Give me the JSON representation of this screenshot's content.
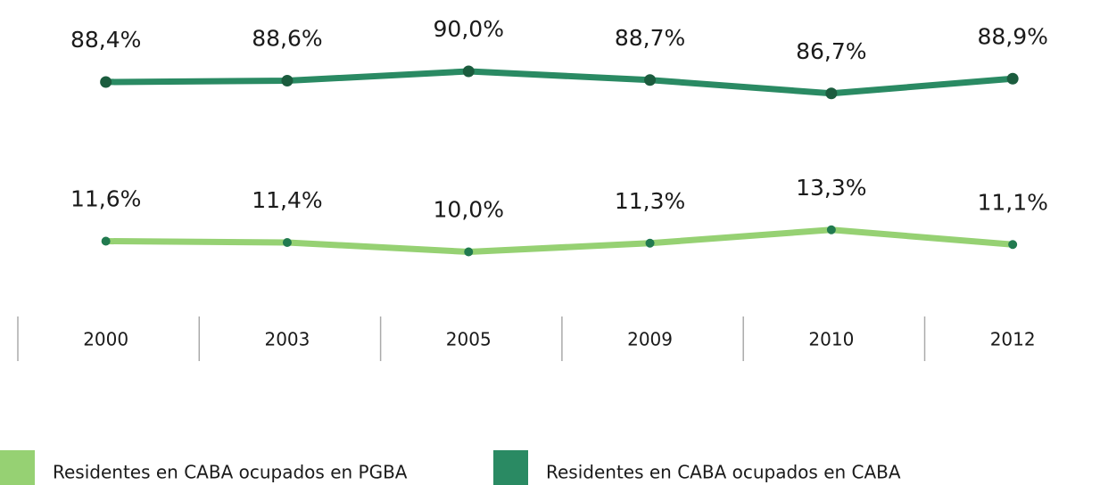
{
  "chart_data": {
    "type": "line",
    "categories": [
      "2000",
      "2003",
      "2005",
      "2009",
      "2010",
      "2012"
    ],
    "series": [
      {
        "name": "Residentes en CABA ocupados en PGBA",
        "color": "#96d173",
        "marker_color": "#217a4f",
        "axis": "y2",
        "values": [
          11.6,
          11.4,
          10.0,
          11.3,
          13.3,
          11.1
        ],
        "value_labels": [
          "11,6%",
          "11,4%",
          "10,0%",
          "11,3%",
          "13,3%",
          "11,1%"
        ]
      },
      {
        "name": "Residentes en CABA ocupados en CABA",
        "color": "#2a8a63",
        "marker_color": "#1b5c3e",
        "values": [
          88.4,
          88.6,
          90.0,
          88.7,
          86.7,
          88.9
        ],
        "value_labels": [
          "88,4%",
          "88,6%",
          "90,0%",
          "88,7%",
          "86,7%",
          "88,9%"
        ]
      }
    ],
    "ylim": [
      58,
      98
    ],
    "y2lim": [
      5,
      45
    ],
    "grid": false
  }
}
